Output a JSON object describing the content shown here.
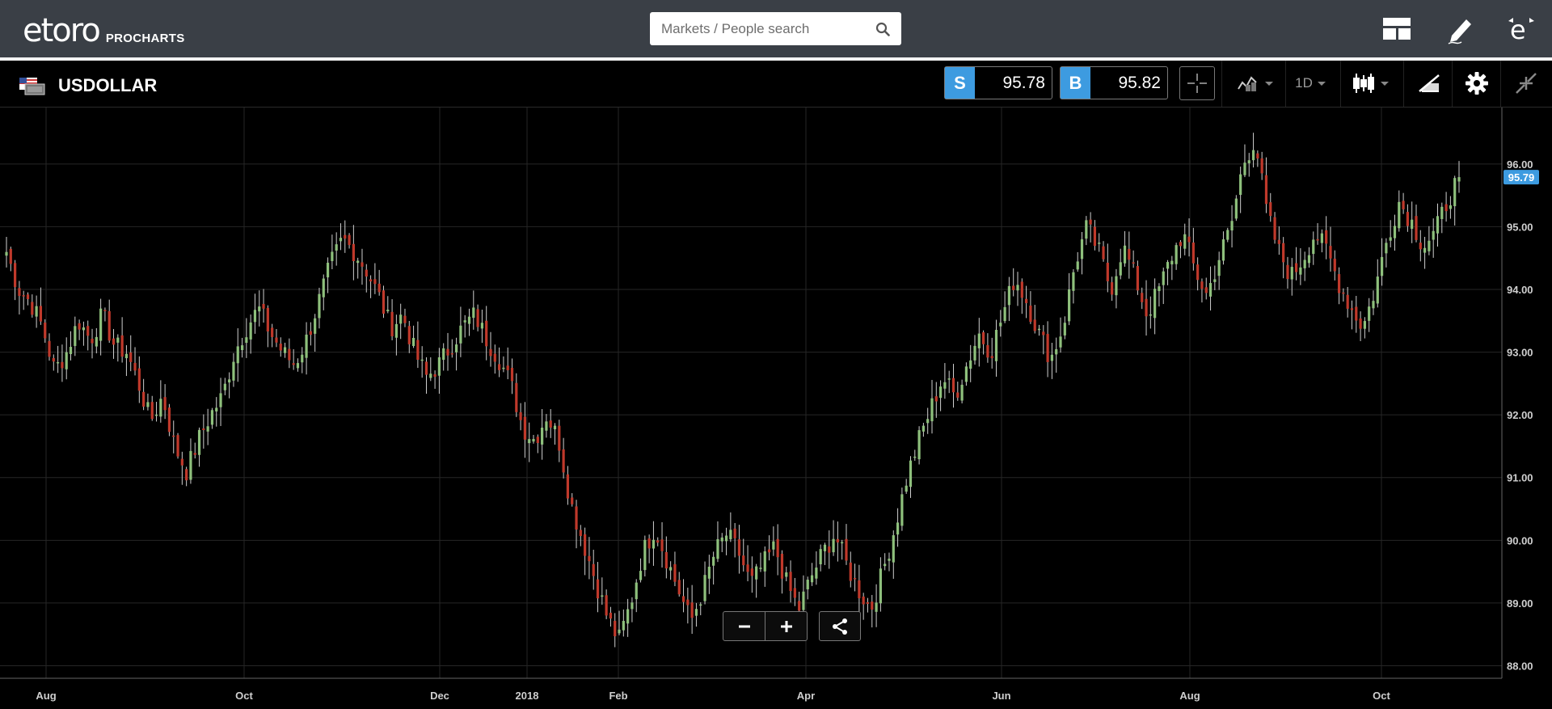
{
  "header": {
    "logo_text": "etoro",
    "logo_sub": "PROCHARTS",
    "search_placeholder": "Markets / People search"
  },
  "instrument": {
    "name": "USDOLLAR",
    "flag_icon": "us-flag-icon",
    "sell_label": "S",
    "sell_price": "95.78",
    "buy_label": "B",
    "buy_price": "95.82",
    "timeframe": "1D"
  },
  "colors": {
    "up": "#8ec07c",
    "down": "#c0392b",
    "accent": "#3d9be0",
    "topbar": "#3a3f46"
  },
  "chart": {
    "last_price": "95.79",
    "last_value": 95.79
  },
  "chart_data": {
    "type": "candlestick",
    "ylim": [
      87.8,
      96.9
    ],
    "yticks": [
      "96.00",
      "95.00",
      "94.00",
      "93.00",
      "92.00",
      "91.00",
      "90.00",
      "89.00",
      "88.00"
    ],
    "xticks": [
      "Aug",
      "Oct",
      "Dec",
      "2018",
      "Feb",
      "Apr",
      "Jun",
      "Aug",
      "Oct"
    ],
    "grid": true,
    "closes": [
      94.6,
      94.0,
      93.8,
      93.4,
      92.7,
      93.0,
      93.5,
      93.2,
      93.6,
      93.1,
      93.0,
      92.5,
      91.9,
      92.3,
      91.5,
      91.1,
      91.6,
      92.0,
      92.3,
      93.0,
      93.4,
      93.7,
      93.3,
      93.0,
      92.8,
      93.2,
      93.8,
      94.4,
      94.8,
      94.6,
      94.3,
      93.9,
      93.4,
      93.6,
      93.0,
      92.6,
      92.8,
      93.1,
      93.4,
      93.6,
      93.2,
      92.9,
      92.5,
      91.8,
      91.6,
      92.0,
      91.6,
      90.6,
      90.0,
      89.4,
      88.8,
      88.4,
      89.0,
      89.8,
      90.2,
      89.7,
      89.2,
      88.7,
      89.2,
      89.8,
      90.1,
      89.8,
      89.3,
      89.6,
      89.9,
      89.3,
      88.9,
      89.4,
      89.8,
      90.1,
      89.6,
      89.2,
      88.9,
      89.5,
      90.2,
      91.0,
      91.6,
      92.1,
      92.6,
      92.3,
      92.8,
      93.3,
      93.0,
      93.6,
      94.2,
      93.8,
      93.3,
      92.9,
      93.4,
      94.4,
      95.0,
      94.6,
      94.0,
      94.7,
      94.2,
      93.6,
      94.0,
      94.5,
      94.9,
      94.3,
      93.9,
      94.5,
      95.0,
      96.0,
      96.4,
      95.2,
      94.6,
      94.2,
      94.5,
      94.9,
      94.6,
      94.1,
      93.7,
      93.4,
      94.0,
      94.8,
      95.4,
      95.1,
      94.7,
      94.9,
      95.4,
      95.8
    ]
  }
}
